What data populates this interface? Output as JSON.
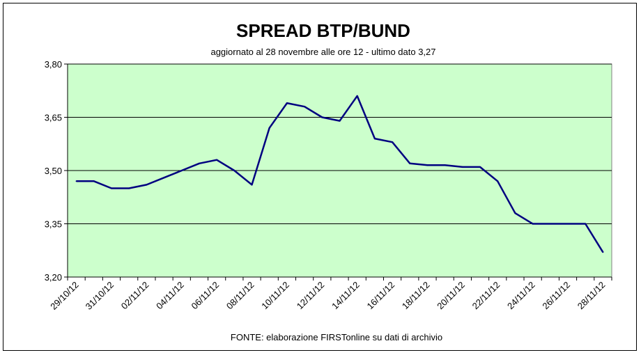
{
  "chart_data": {
    "type": "line",
    "title": "SPREAD  BTP/BUND",
    "subtitle": "aggiornato al 28 novembre alle ore 12 - ultimo dato 3,27",
    "source_note": "FONTE: elaborazione FIRSTonline su dati di archivio",
    "xlabel": "",
    "ylabel": "",
    "ylim": [
      3.2,
      3.8
    ],
    "yticks": [
      3.2,
      3.35,
      3.5,
      3.65,
      3.8
    ],
    "ytick_labels": [
      "3,20",
      "3,35",
      "3,50",
      "3,65",
      "3,80"
    ],
    "xtick_labels": [
      "29/10/12",
      "31/10/12",
      "02/11/12",
      "04/11/12",
      "06/11/12",
      "08/11/12",
      "10/11/12",
      "12/11/12",
      "14/11/12",
      "16/11/12",
      "18/11/12",
      "20/11/12",
      "22/11/12",
      "24/11/12",
      "26/11/12",
      "28/11/12"
    ],
    "grid": "horizontal",
    "plot_background": "#ccffcc",
    "line_color": "#000080",
    "series": [
      {
        "x": [
          "29/10/12",
          "30/10/12",
          "31/10/12",
          "01/11/12",
          "02/11/12",
          "03/11/12",
          "04/11/12",
          "05/11/12",
          "06/11/12",
          "07/11/12",
          "08/11/12",
          "09/11/12",
          "10/11/12",
          "11/11/12",
          "12/11/12",
          "13/11/12",
          "14/11/12",
          "15/11/12",
          "16/11/12",
          "17/11/12",
          "18/11/12",
          "19/11/12",
          "20/11/12",
          "21/11/12",
          "22/11/12",
          "23/11/12",
          "24/11/12",
          "25/11/12",
          "26/11/12",
          "27/11/12",
          "28/11/12"
        ],
        "values": [
          3.47,
          3.47,
          3.45,
          3.45,
          3.46,
          3.48,
          3.5,
          3.52,
          3.53,
          3.5,
          3.46,
          3.62,
          3.69,
          3.68,
          3.65,
          3.64,
          3.71,
          3.59,
          3.58,
          3.52,
          3.515,
          3.515,
          3.51,
          3.51,
          3.47,
          3.38,
          3.35,
          3.35,
          3.35,
          3.35,
          3.27
        ]
      }
    ]
  }
}
